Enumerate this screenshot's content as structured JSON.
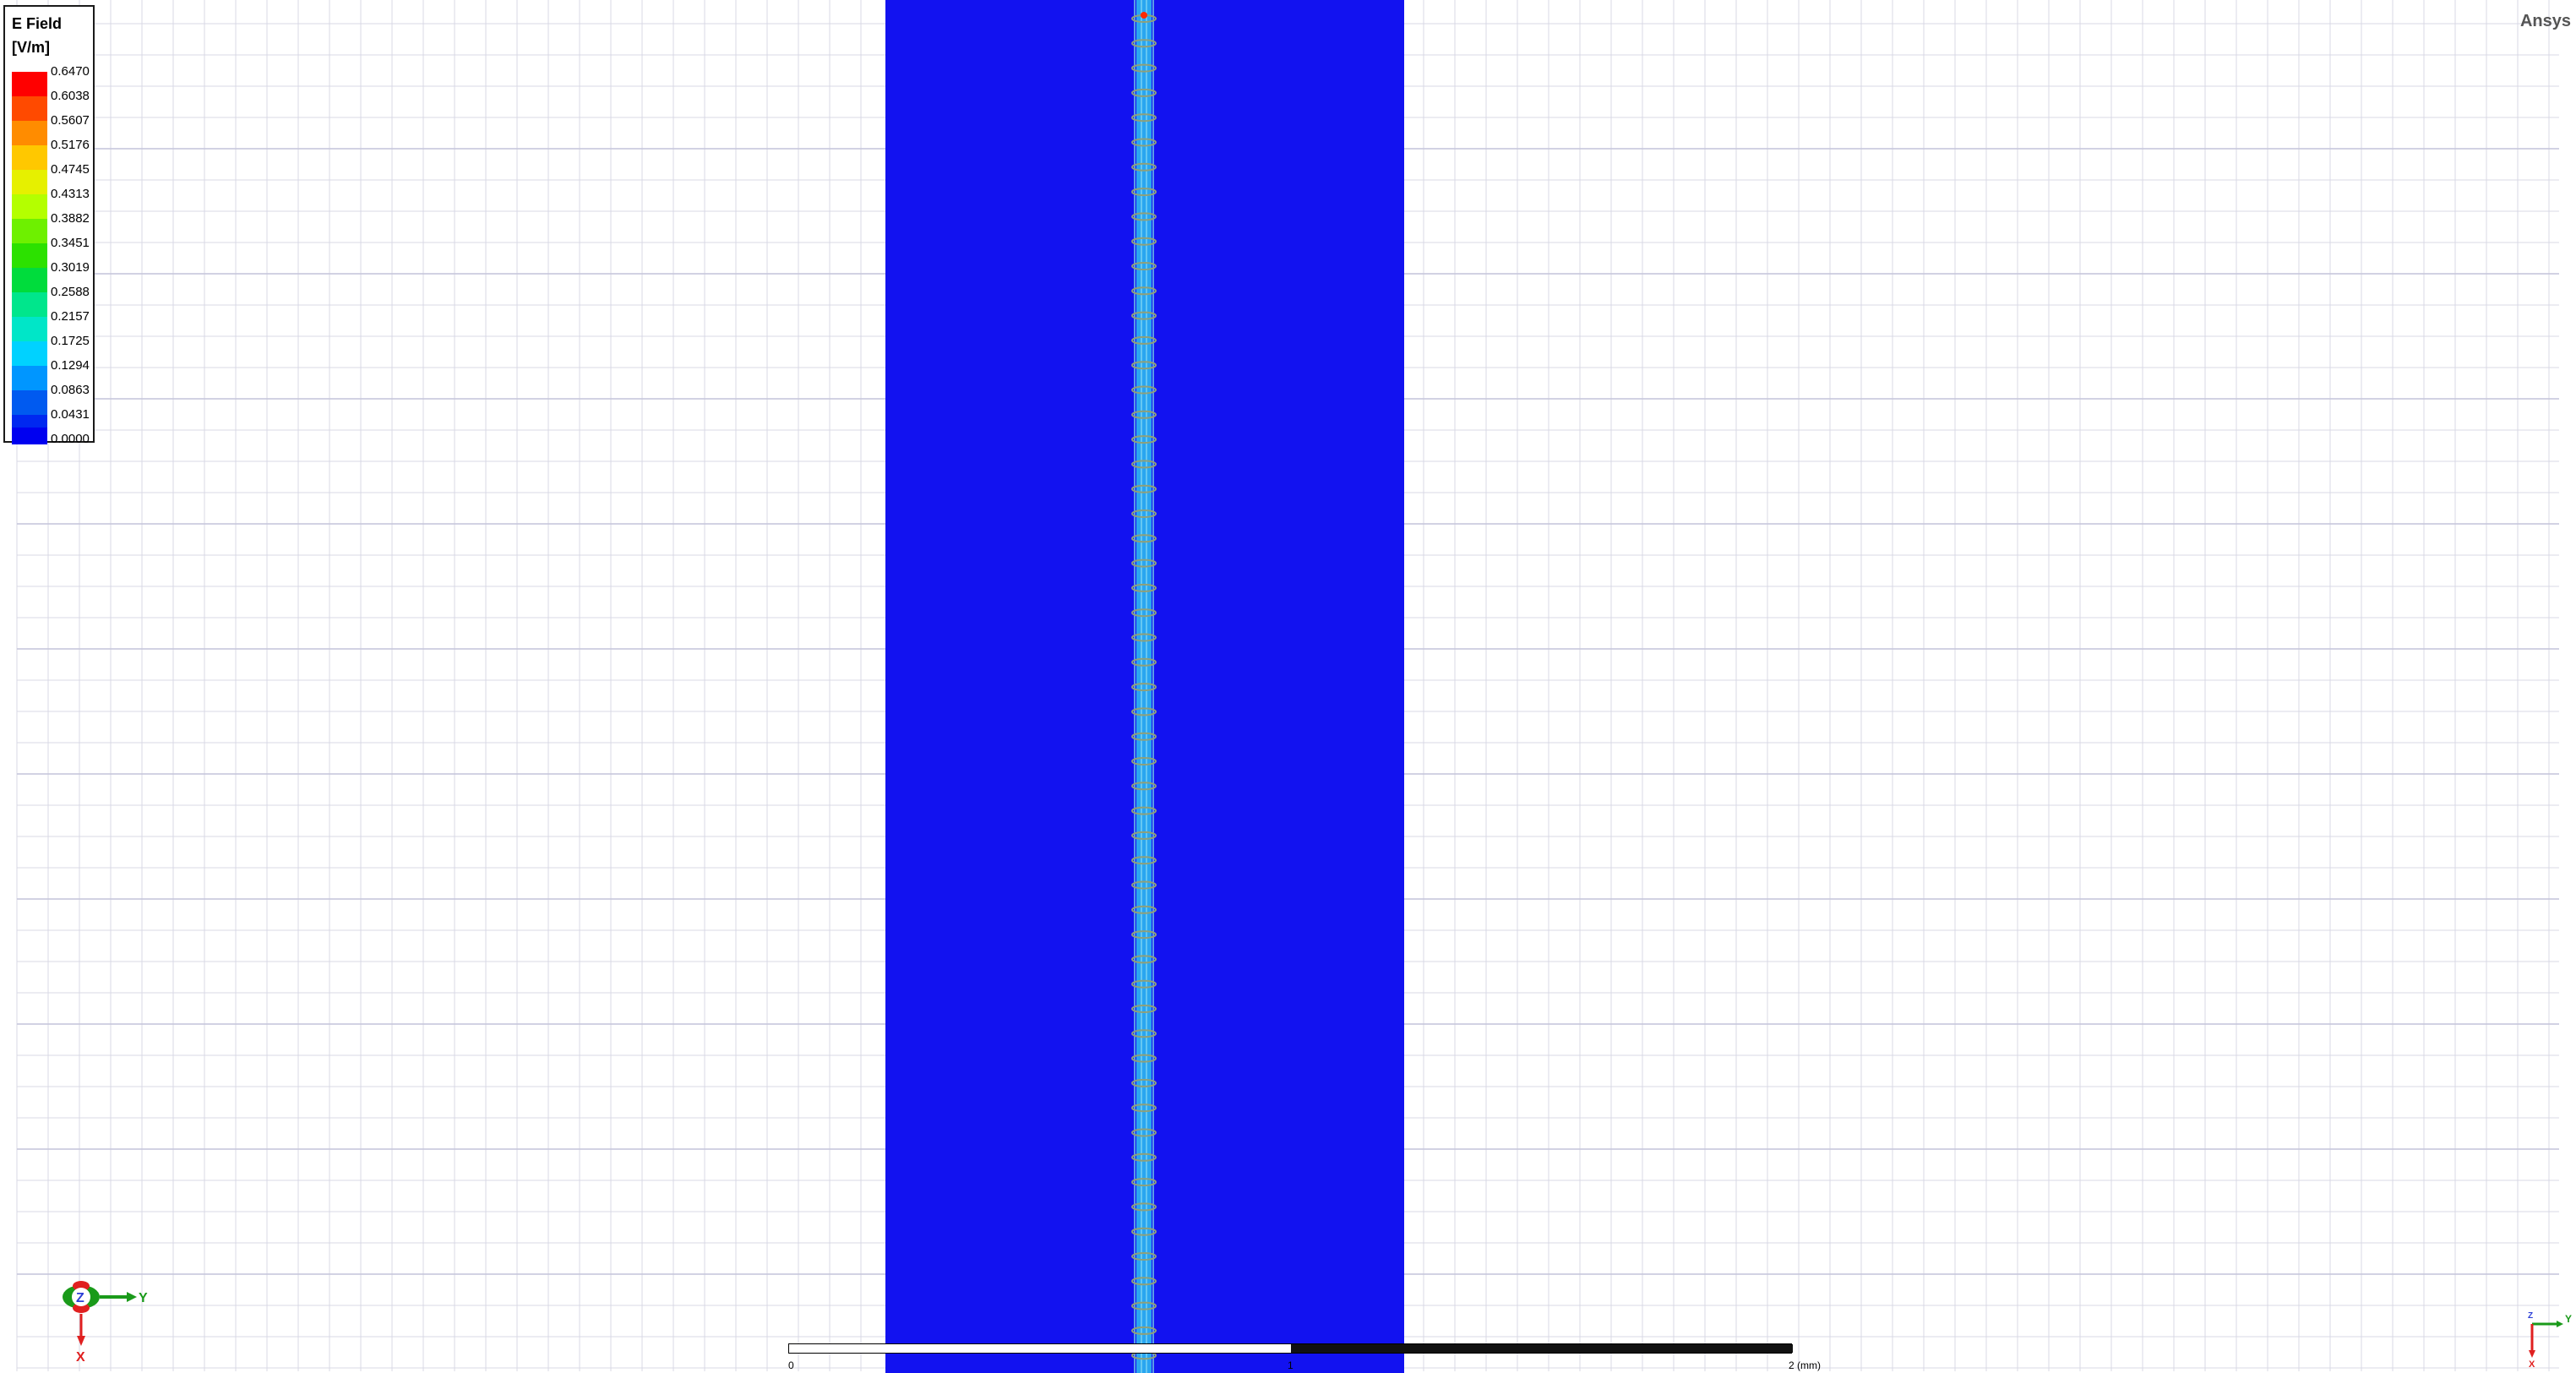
{
  "app": {
    "brand": "Ansys"
  },
  "legend": {
    "title": "E Field",
    "unit": "[V/m]",
    "ticks": [
      "0.6470",
      "0.6038",
      "0.5607",
      "0.5176",
      "0.4745",
      "0.4313",
      "0.3882",
      "0.3451",
      "0.3019",
      "0.2588",
      "0.2157",
      "0.1725",
      "0.1294",
      "0.0863",
      "0.0431",
      "0.0000"
    ],
    "colors": [
      "#ff0000",
      "#ff4a00",
      "#ff8c00",
      "#ffc800",
      "#e6f000",
      "#b4ff00",
      "#6ef000",
      "#2ce100",
      "#00dc3c",
      "#00e68c",
      "#00e6c8",
      "#00d2ff",
      "#0096ff",
      "#005af0",
      "#0028f0",
      "#0000f0"
    ]
  },
  "scale_bar": {
    "start_label": "0",
    "mid_label": "1",
    "end_label": "2 (mm)"
  },
  "triad_left": {
    "z": "Z",
    "y": "Y",
    "x": "X"
  },
  "triad_right": {
    "z": "Z",
    "y": "Y",
    "x": "X"
  },
  "field_plot": {
    "substrate_color": "#1212f0",
    "trace_color": "#2aa6f0",
    "hotspot_color": "#ff2a00"
  }
}
